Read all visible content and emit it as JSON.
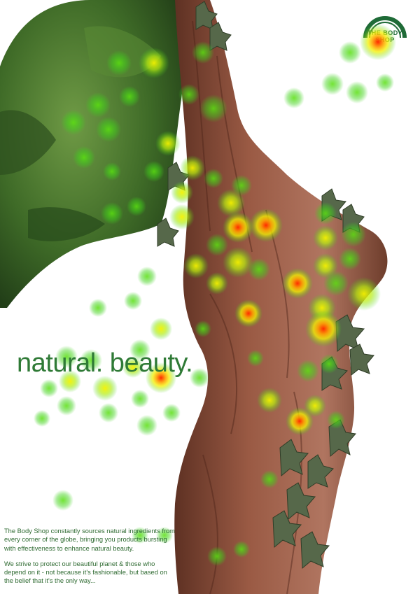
{
  "ad": {
    "headline": "natural. beauty.",
    "body_paragraphs": [
      "The Body Shop constantly sources natural ingredients from every corner of the globe, bringing you products bursting with effectiveness to enhance natural beauty.",
      "We strive to protect our beautiful planet & those who depend on it - not because it's fashionable, but based on the belief that it's the only way..."
    ],
    "logo_text": "THE BODY SHOP"
  },
  "colors": {
    "brand_green": "#2f7a36",
    "bark": "#8a4f3b",
    "foliage": "#3f6a2a",
    "ivy": "#5b6f4f",
    "heat_low": "#3fd21a",
    "heat_mid": "#f4f200",
    "heat_high": "#ff2a00"
  }
}
